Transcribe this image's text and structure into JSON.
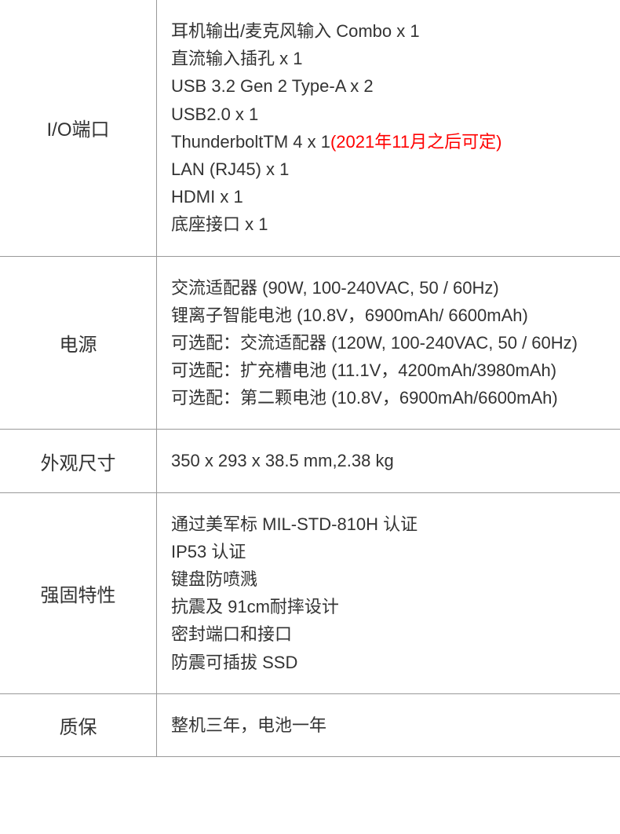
{
  "table": {
    "border_color": "#999999",
    "text_color": "#333333",
    "highlight_color": "#ff0000",
    "background_color": "#ffffff",
    "label_fontsize": 24,
    "value_fontsize": 22,
    "label_col_width": 200,
    "rows": [
      {
        "label": "I/O端口",
        "lines": [
          {
            "text": "耳机输出/麦克风输入 Combo x 1"
          },
          {
            "text": "直流输入插孔 x 1"
          },
          {
            "text": "USB 3.2 Gen 2 Type-A x 2"
          },
          {
            "text": "USB2.0 x 1"
          },
          {
            "text": "ThunderboltTM 4 x 1",
            "suffix": "(2021年11月之后可定)",
            "suffix_highlight": true
          },
          {
            "text": "LAN (RJ45) x 1"
          },
          {
            "text": "HDMI x 1"
          },
          {
            "text": "底座接口 x 1"
          }
        ]
      },
      {
        "label": "电源",
        "lines": [
          {
            "text": "交流适配器 (90W, 100-240VAC, 50 / 60Hz)"
          },
          {
            "text": "锂离子智能电池 (10.8V，6900mAh/ 6600mAh)"
          },
          {
            "text": "可选配：交流适配器 (120W, 100-240VAC, 50 / 60Hz)"
          },
          {
            "text": "可选配：扩充槽电池 (11.1V，4200mAh/3980mAh)"
          },
          {
            "text": "可选配：第二颗电池 (10.8V，6900mAh/6600mAh)"
          }
        ]
      },
      {
        "label": "外观尺寸",
        "lines": [
          {
            "text": "350 x 293 x 38.5 mm,2.38 kg"
          }
        ]
      },
      {
        "label": "强固特性",
        "lines": [
          {
            "text": "通过美军标 MIL-STD-810H 认证"
          },
          {
            "text": "IP53 认证"
          },
          {
            "text": "键盘防喷溅"
          },
          {
            "text": "抗震及 91cm耐摔设计"
          },
          {
            "text": "密封端口和接口"
          },
          {
            "text": "防震可插拔 SSD"
          }
        ]
      },
      {
        "label": "质保",
        "lines": [
          {
            "text": "整机三年，电池一年"
          }
        ]
      }
    ]
  }
}
